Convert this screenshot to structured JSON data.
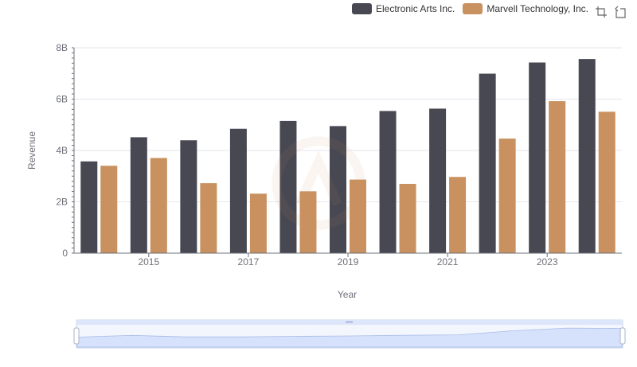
{
  "colors": {
    "ea": "#484853",
    "mrvl": "#c8915f",
    "grid": "#e6e6ee",
    "axis": "#6e7079",
    "zoom_fill": "#d6e2fb",
    "zoom_border": "#c9d4ee"
  },
  "legend": {
    "items": [
      {
        "label": "Electronic Arts Inc.",
        "color": "#484853"
      },
      {
        "label": "Marvell Technology, Inc.",
        "color": "#c8915f"
      }
    ]
  },
  "toolbox": {
    "icons": [
      "zoom-icon",
      "restore-icon"
    ]
  },
  "chart_data": {
    "type": "bar",
    "xlabel": "Year",
    "ylabel": "Revenue",
    "ylim": [
      0,
      8000000000
    ],
    "yticks": [
      {
        "value": 0,
        "label": "0"
      },
      {
        "value": 2000000000,
        "label": "2B"
      },
      {
        "value": 4000000000,
        "label": "4B"
      },
      {
        "value": 6000000000,
        "label": "6B"
      },
      {
        "value": 8000000000,
        "label": "8B"
      }
    ],
    "categories": [
      "2014",
      "2015",
      "2016",
      "2017",
      "2018",
      "2019",
      "2020",
      "2021",
      "2022",
      "2023",
      "2024"
    ],
    "xtick_labels": [
      "2015",
      "2017",
      "2019",
      "2021",
      "2023"
    ],
    "grid": true,
    "legend_position": "top-right",
    "series": [
      {
        "name": "Electronic Arts Inc.",
        "color": "#484853",
        "values": [
          3575000000,
          4515000000,
          4396000000,
          4845000000,
          5150000000,
          4950000000,
          5537000000,
          5629000000,
          6991000000,
          7426000000,
          7562000000
        ]
      },
      {
        "name": "Marvell Technology, Inc.",
        "color": "#c8915f",
        "values": [
          3404000000,
          3707000000,
          2725000000,
          2318000000,
          2409000000,
          2866000000,
          2699000000,
          2969000000,
          4462000000,
          5920000000,
          5508000000
        ]
      }
    ]
  }
}
